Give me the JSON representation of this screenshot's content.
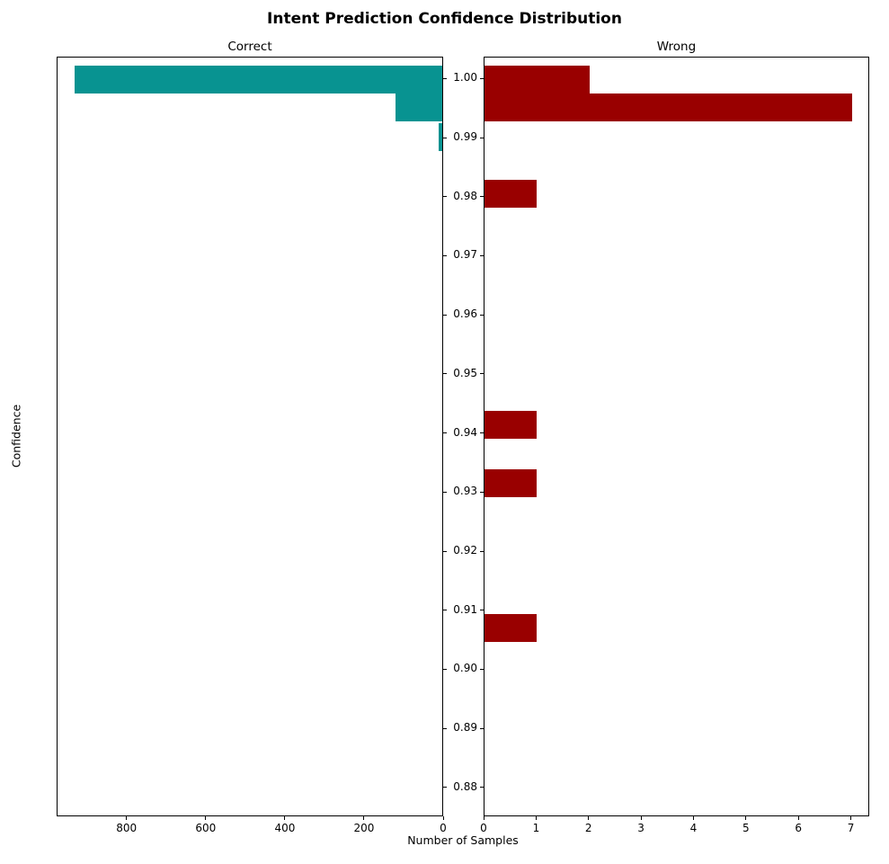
{
  "chart_data": {
    "type": "bar",
    "orientation": "horizontal",
    "title": "Intent Prediction Confidence Distribution",
    "xlabel": "Number of Samples",
    "ylabel": "Confidence",
    "grid": false,
    "legend": false,
    "ylim": [
      0.8751,
      1.0037
    ],
    "y_ticks": [
      1.0,
      0.99,
      0.98,
      0.97,
      0.96,
      0.95,
      0.94,
      0.93,
      0.92,
      0.91,
      0.9,
      0.89,
      0.88
    ],
    "bar_height": 0.0047,
    "panels": [
      {
        "title": "Correct",
        "color": "#089391",
        "x_inverted": true,
        "xlim": [
          976.5,
          0
        ],
        "x_ticks": [
          800,
          600,
          400,
          200,
          0
        ],
        "bars": [
          {
            "confidence": 1.0,
            "count": 930
          },
          {
            "confidence": 0.9953,
            "count": 118
          },
          {
            "confidence": 0.9903,
            "count": 10
          }
        ]
      },
      {
        "title": "Wrong",
        "color": "#990000",
        "x_inverted": false,
        "xlim": [
          0,
          7.35
        ],
        "x_ticks": [
          0,
          1,
          2,
          3,
          4,
          5,
          6,
          7
        ],
        "bars": [
          {
            "confidence": 1.0,
            "count": 2
          },
          {
            "confidence": 0.9953,
            "count": 7
          },
          {
            "confidence": 0.9806,
            "count": 1
          },
          {
            "confidence": 0.9415,
            "count": 1
          },
          {
            "confidence": 0.9317,
            "count": 1
          },
          {
            "confidence": 0.9072,
            "count": 1
          }
        ]
      }
    ]
  }
}
